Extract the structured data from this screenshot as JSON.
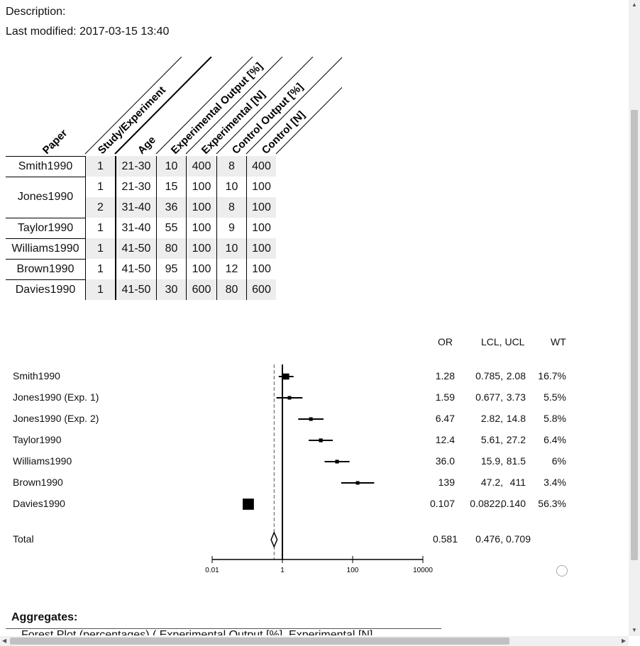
{
  "meta": {
    "description_label": "Description:",
    "modified_label": "Last modified:",
    "modified_value": "2017-03-15 13:40"
  },
  "table": {
    "columns": [
      "Paper",
      "Study/Experiment",
      "Age",
      "Experimental Output [%]",
      "Experimental [N]",
      "Control Output [%]",
      "Control [N]"
    ],
    "rows": [
      {
        "paper": "Smith1990",
        "cells": [
          [
            "1",
            "21-30",
            "10",
            "400",
            "8",
            "400"
          ]
        ]
      },
      {
        "paper": "Jones1990",
        "cells": [
          [
            "1",
            "21-30",
            "15",
            "100",
            "10",
            "100"
          ],
          [
            "2",
            "31-40",
            "36",
            "100",
            "8",
            "100"
          ]
        ]
      },
      {
        "paper": "Taylor1990",
        "cells": [
          [
            "1",
            "31-40",
            "55",
            "100",
            "9",
            "100"
          ]
        ]
      },
      {
        "paper": "Williams1990",
        "cells": [
          [
            "1",
            "41-50",
            "80",
            "100",
            "10",
            "100"
          ]
        ]
      },
      {
        "paper": "Brown1990",
        "cells": [
          [
            "1",
            "41-50",
            "95",
            "100",
            "12",
            "100"
          ]
        ]
      },
      {
        "paper": "Davies1990",
        "cells": [
          [
            "1",
            "41-50",
            "30",
            "600",
            "80",
            "600"
          ]
        ]
      }
    ]
  },
  "chart_data": {
    "type": "scatter",
    "subtype": "forest",
    "headers": {
      "or": "OR",
      "ci": "LCL, UCL",
      "wt": "WT"
    },
    "x_scale": "log",
    "xlim": [
      0.01,
      10000
    ],
    "xticks": [
      "0.01",
      "1",
      "100",
      "10000"
    ],
    "reference_line": 0.581,
    "studies": [
      {
        "label": "Smith1990",
        "or": 1.28,
        "lcl": 0.785,
        "ucl": 2.08,
        "wt": 16.7,
        "or_text": "1.28",
        "lcl_text": "0.785,",
        "ucl_text": "2.08",
        "wt_text": "16.7%"
      },
      {
        "label": "Jones1990 (Exp. 1)",
        "or": 1.59,
        "lcl": 0.677,
        "ucl": 3.73,
        "wt": 5.5,
        "or_text": "1.59",
        "lcl_text": "0.677,",
        "ucl_text": "3.73",
        "wt_text": "5.5%"
      },
      {
        "label": "Jones1990 (Exp. 2)",
        "or": 6.47,
        "lcl": 2.82,
        "ucl": 14.8,
        "wt": 5.8,
        "or_text": "6.47",
        "lcl_text": "2.82,",
        "ucl_text": "14.8",
        "wt_text": "5.8%"
      },
      {
        "label": "Taylor1990",
        "or": 12.4,
        "lcl": 5.61,
        "ucl": 27.2,
        "wt": 6.4,
        "or_text": "12.4",
        "lcl_text": "5.61,",
        "ucl_text": "27.2",
        "wt_text": "6.4%"
      },
      {
        "label": "Williams1990",
        "or": 36.0,
        "lcl": 15.9,
        "ucl": 81.5,
        "wt": 6,
        "or_text": "36.0",
        "lcl_text": "15.9,",
        "ucl_text": "81.5",
        "wt_text": "6%"
      },
      {
        "label": "Brown1990",
        "or": 139,
        "lcl": 47.2,
        "ucl": 411,
        "wt": 3.4,
        "or_text": "139",
        "lcl_text": "47.2,",
        "ucl_text": "411",
        "wt_text": "3.4%"
      },
      {
        "label": "Davies1990",
        "or": 0.107,
        "lcl": 0.0822,
        "ucl": 0.14,
        "wt": 56.3,
        "or_text": "0.107",
        "lcl_text": "0.0822,",
        "ucl_text": "0.140",
        "wt_text": "56.3%"
      }
    ],
    "total": {
      "label": "Total",
      "or": 0.581,
      "lcl": 0.476,
      "ucl": 0.709,
      "or_text": "0.581",
      "lcl_text": "0.476,",
      "ucl_text": "0.709"
    }
  },
  "aggregates": {
    "title": "Aggregates:",
    "first_item": "Forest Plot (percentages) ( Experimental Output [%], Experimental [N],"
  }
}
